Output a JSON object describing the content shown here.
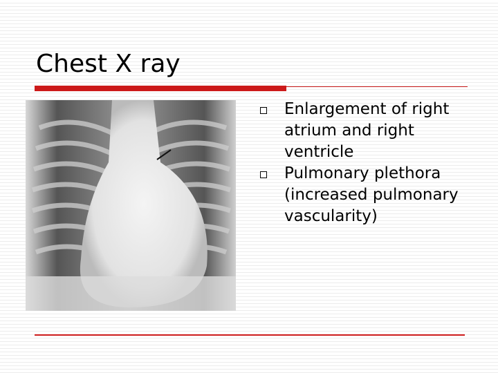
{
  "title": "Chest X ray",
  "bullets": [
    "Enlargement of right atrium and right ventricle",
    "Pulmonary plethora (increased pulmonary vascularity)"
  ]
}
